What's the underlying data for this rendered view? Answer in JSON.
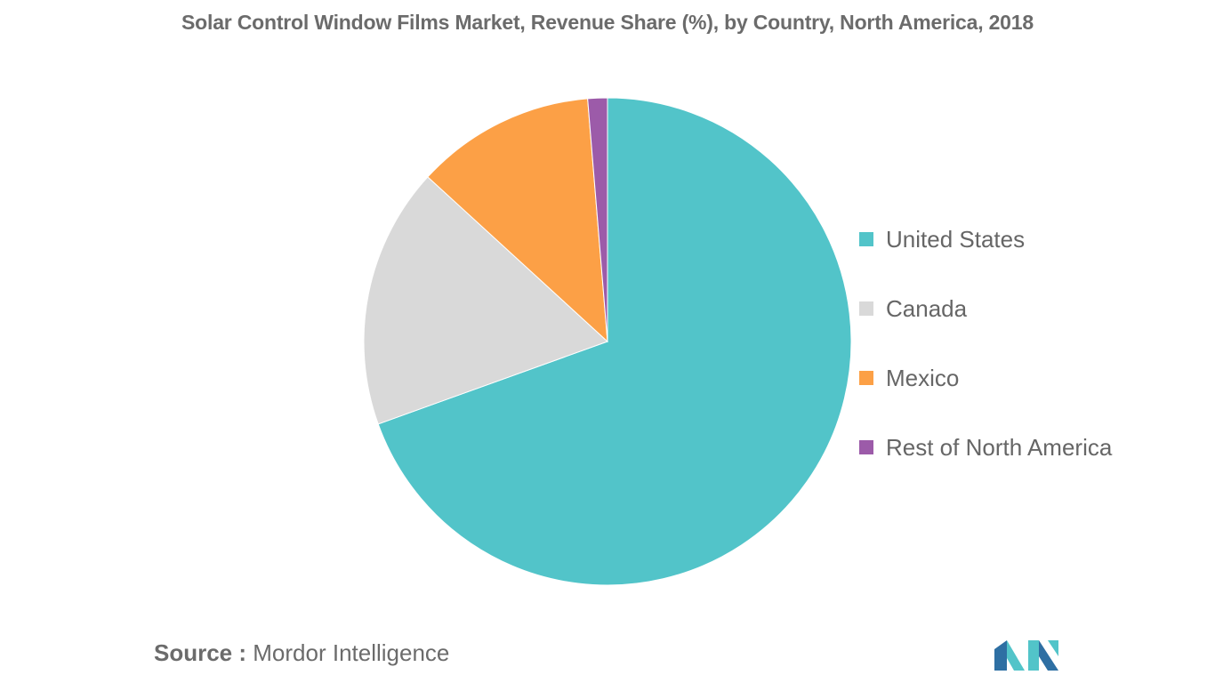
{
  "chart_data": {
    "type": "pie",
    "title": "Solar Control Window Films Market, Revenue Share (%), by Country, North America, 2018",
    "categories": [
      "United States",
      "Canada",
      "Mexico",
      "Rest of North America"
    ],
    "values": [
      69.5,
      17.3,
      11.9,
      1.3
    ],
    "colors": [
      "#52c4c9",
      "#d9d9d9",
      "#fca046",
      "#9c5ba9"
    ],
    "legend_position": "right",
    "start_angle": "12 o'clock, clockwise"
  },
  "source": {
    "key": "Source :",
    "value": "Mordor Intelligence"
  },
  "logo": {
    "icon": "mordor-intelligence-logo",
    "colors": [
      "#2e6fa3",
      "#52c4c9"
    ]
  }
}
